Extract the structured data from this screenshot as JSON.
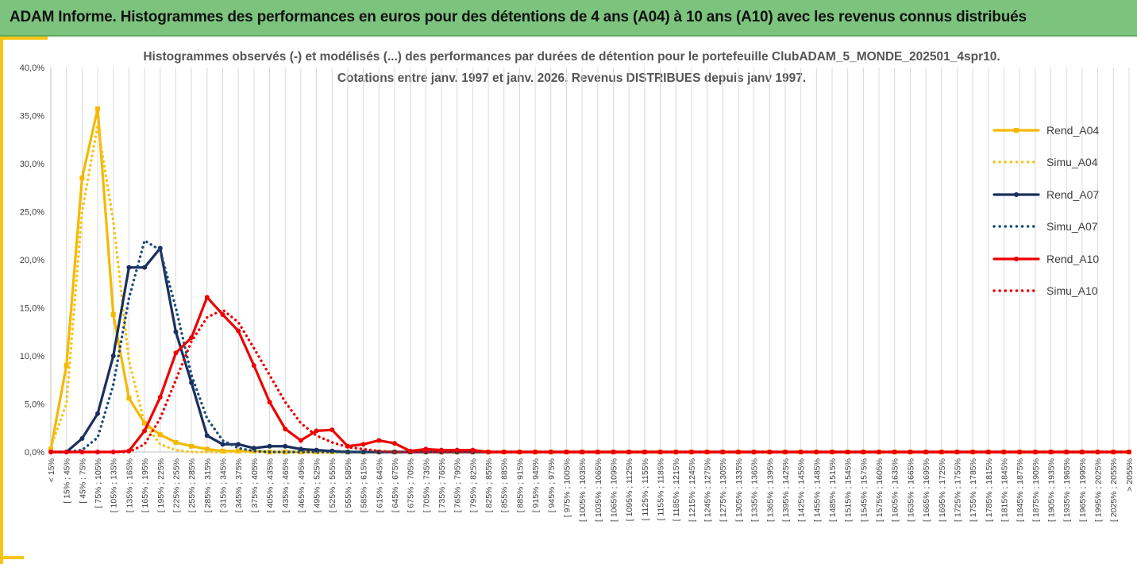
{
  "header": {
    "title": "ADAM Informe. Histogrammes des performances en euros pour des détentions de 4 ans (A04) à 10 ans (A10) avec les revenus connus distribués"
  },
  "chart_data": {
    "type": "line",
    "title": "Histogrammes observés (-) et modélisés (...) des performances par durées de détention pour le portefeuille ClubADAM_5_MONDE_202501_4spr10.",
    "subtitle": "Cotations entre janv. 1997 et janv. 2026. Revenus DISTRIBUES depuis janv 1997.",
    "xlabel": "",
    "ylabel": "",
    "ylim": [
      0,
      0.4
    ],
    "y_ticks": [
      "0,0%",
      "5,0%",
      "10,0%",
      "15,0%",
      "20,0%",
      "25,0%",
      "30,0%",
      "35,0%",
      "40,0%"
    ],
    "grid": "vertical",
    "legend_position": "right",
    "categories": [
      "< 15%",
      "[ 15% ; 45%",
      "[ 45% ; 75%",
      "[ 75% ; 105%",
      "[ 105% ; 135%",
      "[ 135% ; 165%",
      "[ 165% ; 195%",
      "[ 195% ; 225%",
      "[ 225% ; 255%",
      "[ 255% ; 285%",
      "[ 285% ; 315%",
      "[ 315% ; 345%",
      "[ 345% ; 375%",
      "[ 375% ; 405%",
      "[ 405% ; 435%",
      "[ 435% ; 465%",
      "[ 465% ; 495%",
      "[ 495% ; 525%",
      "[ 525% ; 555%",
      "[ 555% ; 585%",
      "[ 585% ; 615%",
      "[ 615% ; 645%",
      "[ 645% ; 675%",
      "[ 675% ; 705%",
      "[ 705% ; 735%",
      "[ 735% ; 765%",
      "[ 765% ; 795%",
      "[ 795% ; 825%",
      "[ 825% ; 855%",
      "[ 855% ; 885%",
      "[ 885% ; 915%",
      "[ 915% ; 945%",
      "[ 945% ; 975%",
      "[ 975% ; 1005%",
      "[ 1005% ; 1035%",
      "[ 1035% ; 1065%",
      "[ 1065% ; 1095%",
      "[ 1095% ; 1125%",
      "[ 1125% ; 1155%",
      "[ 1155% ; 1185%",
      "[ 1185% ; 1215%",
      "[ 1215% ; 1245%",
      "[ 1245% ; 1275%",
      "[ 1275% ; 1305%",
      "[ 1305% ; 1335%",
      "[ 1335% ; 1365%",
      "[ 1365% ; 1395%",
      "[ 1395% ; 1425%",
      "[ 1425% ; 1455%",
      "[ 1455% ; 1485%",
      "[ 1485% ; 1515%",
      "[ 1515% ; 1545%",
      "[ 1545% ; 1575%",
      "[ 1575% ; 1605%",
      "[ 1605% ; 1635%",
      "[ 1635% ; 1665%",
      "[ 1665% ; 1695%",
      "[ 1695% ; 1725%",
      "[ 1725% ; 1755%",
      "[ 1755% ; 1785%",
      "[ 1785% ; 1815%",
      "[ 1815% ; 1845%",
      "[ 1845% ; 1875%",
      "[ 1875% ; 1905%",
      "[ 1905% ; 1935%",
      "[ 1935% ; 1965%",
      "[ 1965% ; 1995%",
      "[ 1995% ; 2025%",
      "[ 2025% ; 2055%",
      "> 2055%"
    ],
    "series": [
      {
        "name": "Rend_A04",
        "color": "#f5b800",
        "style": "solid",
        "marker": "square",
        "values": [
          0.003,
          0.09,
          0.285,
          0.357,
          0.143,
          0.056,
          0.03,
          0.018,
          0.01,
          0.006,
          0.003,
          0.001,
          0.001,
          0.001,
          0,
          0,
          0,
          0,
          0,
          0,
          0,
          0,
          0,
          0,
          0,
          0,
          0,
          0,
          0,
          0,
          0,
          0,
          0,
          0,
          0,
          0,
          0,
          0,
          0,
          0,
          0,
          0,
          0,
          0,
          0,
          0,
          0,
          0,
          0,
          0,
          0,
          0,
          0,
          0,
          0,
          0,
          0,
          0,
          0,
          0,
          0,
          0,
          0,
          0,
          0,
          0,
          0,
          0,
          0,
          0
        ]
      },
      {
        "name": "Simu_A04",
        "color": "#f5c518",
        "style": "dotted",
        "marker": "none",
        "values": [
          0.005,
          0.05,
          0.25,
          0.34,
          0.24,
          0.095,
          0.03,
          0.008,
          0.002,
          0,
          0,
          0,
          0,
          0,
          0,
          0,
          0,
          0,
          0,
          0,
          0,
          0,
          0,
          0,
          0,
          0,
          0,
          0,
          0,
          0,
          0,
          0,
          0,
          0,
          0,
          0,
          0,
          0,
          0,
          0,
          0,
          0,
          0,
          0,
          0,
          0,
          0,
          0,
          0,
          0,
          0,
          0,
          0,
          0,
          0,
          0,
          0,
          0,
          0,
          0,
          0,
          0,
          0,
          0,
          0,
          0,
          0,
          0,
          0,
          0
        ]
      },
      {
        "name": "Rend_A07",
        "color": "#1a2f5e",
        "style": "solid",
        "marker": "circle",
        "values": [
          0,
          0,
          0.014,
          0.04,
          0.1,
          0.192,
          0.192,
          0.212,
          0.125,
          0.072,
          0.017,
          0.008,
          0.008,
          0.004,
          0.006,
          0.006,
          0.003,
          0.002,
          0.001,
          0,
          0,
          0,
          0,
          0,
          0,
          0,
          0,
          0,
          0,
          0,
          0,
          0,
          0,
          0,
          0,
          0,
          0,
          0,
          0,
          0,
          0,
          0,
          0,
          0,
          0,
          0,
          0,
          0,
          0,
          0,
          0,
          0,
          0,
          0,
          0,
          0,
          0,
          0,
          0,
          0,
          0,
          0,
          0,
          0,
          0,
          0,
          0,
          0,
          0,
          0
        ]
      },
      {
        "name": "Simu_A07",
        "color": "#1a4a7a",
        "style": "dotted",
        "marker": "none",
        "values": [
          0,
          0,
          0.002,
          0.015,
          0.07,
          0.16,
          0.22,
          0.21,
          0.15,
          0.08,
          0.035,
          0.012,
          0.004,
          0.001,
          0,
          0,
          0,
          0,
          0,
          0,
          0,
          0,
          0,
          0,
          0,
          0,
          0,
          0,
          0,
          0,
          0,
          0,
          0,
          0,
          0,
          0,
          0,
          0,
          0,
          0,
          0,
          0,
          0,
          0,
          0,
          0,
          0,
          0,
          0,
          0,
          0,
          0,
          0,
          0,
          0,
          0,
          0,
          0,
          0,
          0,
          0,
          0,
          0,
          0,
          0,
          0,
          0,
          0,
          0,
          0
        ]
      },
      {
        "name": "Rend_A10",
        "color": "#ee0000",
        "style": "solid",
        "marker": "circle",
        "values": [
          0,
          0,
          0,
          0,
          0,
          0.001,
          0.022,
          0.057,
          0.103,
          0.119,
          0.161,
          0.143,
          0.126,
          0.09,
          0.052,
          0.024,
          0.012,
          0.022,
          0.023,
          0.006,
          0.008,
          0.012,
          0.009,
          0.001,
          0.003,
          0.002,
          0.002,
          0.002,
          0,
          0,
          0,
          0,
          0,
          0,
          0,
          0,
          0,
          0,
          0,
          0,
          0,
          0,
          0,
          0,
          0,
          0,
          0,
          0,
          0,
          0,
          0,
          0,
          0,
          0,
          0,
          0,
          0,
          0,
          0,
          0,
          0,
          0,
          0,
          0,
          0,
          0,
          0,
          0,
          0,
          0
        ]
      },
      {
        "name": "Simu_A10",
        "color": "#ee0000",
        "style": "dotted",
        "marker": "none",
        "values": [
          0,
          0,
          0,
          0,
          0,
          0,
          0.008,
          0.035,
          0.075,
          0.115,
          0.14,
          0.148,
          0.135,
          0.108,
          0.08,
          0.052,
          0.03,
          0.017,
          0.01,
          0.005,
          0.003,
          0.001,
          0,
          0,
          0,
          0,
          0,
          0,
          0,
          0,
          0,
          0,
          0,
          0,
          0,
          0,
          0,
          0,
          0,
          0,
          0,
          0,
          0,
          0,
          0,
          0,
          0,
          0,
          0,
          0,
          0,
          0,
          0,
          0,
          0,
          0,
          0,
          0,
          0,
          0,
          0,
          0,
          0,
          0,
          0,
          0,
          0,
          0,
          0,
          0
        ]
      }
    ]
  }
}
